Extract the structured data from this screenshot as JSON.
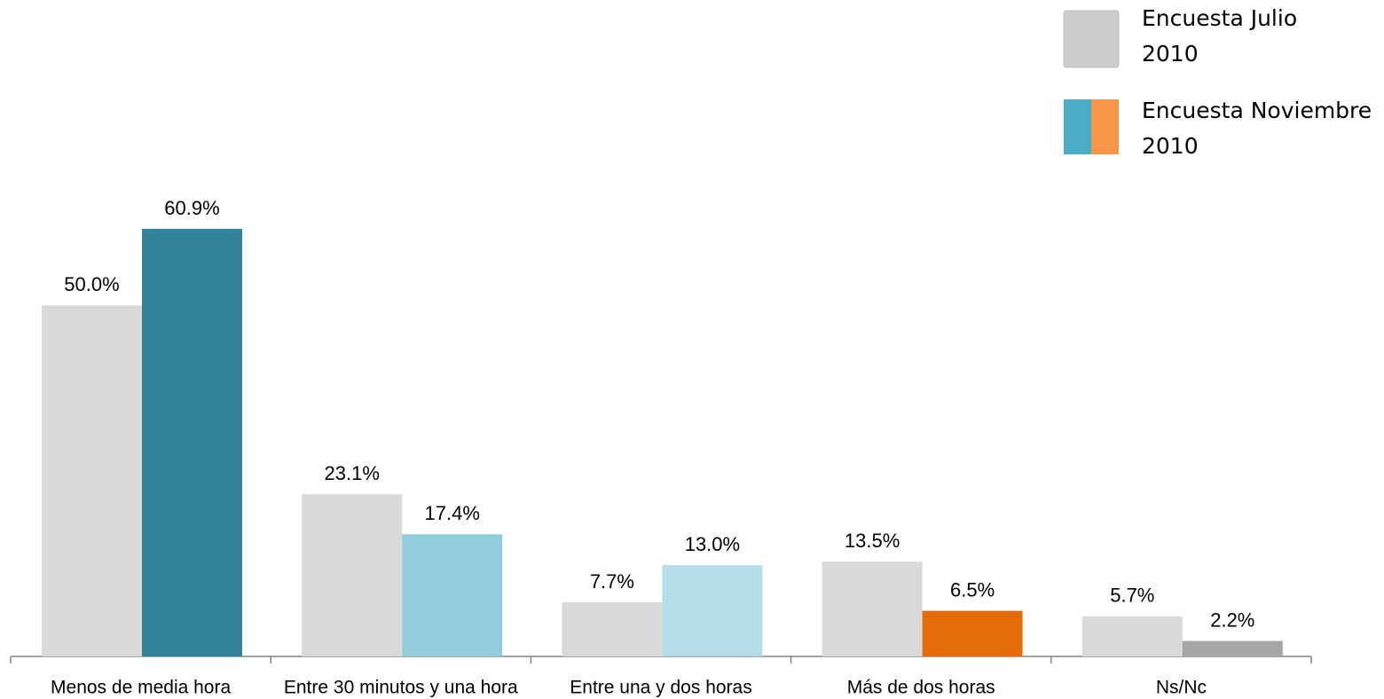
{
  "chart_data": {
    "type": "bar",
    "categories": [
      "Menos de media hora",
      "Entre 30 minutos y una hora",
      "Entre una y dos horas",
      "Más de dos horas",
      "Ns/Nc"
    ],
    "series": [
      {
        "name": "Encuesta Julio 2010",
        "color": "#d9d9d9",
        "legend_color": "#cccccc",
        "values": [
          50.0,
          23.1,
          7.7,
          13.5,
          5.7
        ],
        "value_labels": [
          "50.0%",
          "23.1%",
          "7.7%",
          "13.5%",
          "5.7%"
        ]
      },
      {
        "name": "Encuesta Noviembre 2010",
        "colors": [
          "#31849b",
          "#92cddc",
          "#b7dee8",
          "#e36c09",
          "#a6a6a6"
        ],
        "legend_colors": [
          "#4bacc6",
          "#f79646"
        ],
        "values": [
          60.9,
          17.4,
          13.0,
          6.5,
          2.2
        ],
        "value_labels": [
          "60.9%",
          "17.4%",
          "13.0%",
          "6.5%",
          "2.2%"
        ]
      }
    ],
    "ylim": [
      0,
      70
    ],
    "grid": false
  }
}
